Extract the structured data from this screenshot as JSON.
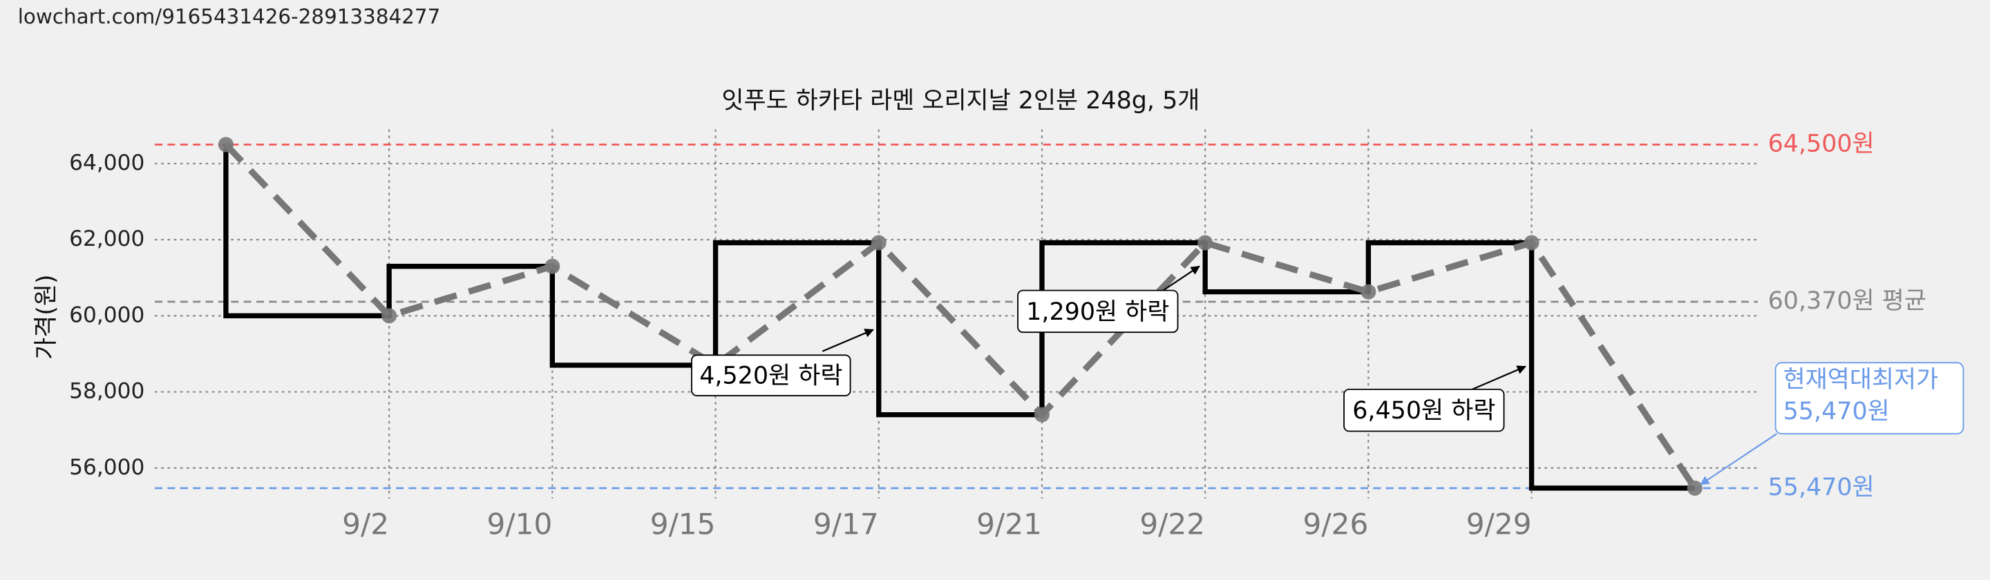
{
  "url": "lowchart.com/9165431426-28913384277",
  "chart_data": {
    "type": "line",
    "title": "잇푸도 하카타 라멘 오리지날 2인분 248g, 5개",
    "ylabel": "가격(원)",
    "categories": [
      null,
      "9/2",
      "9/10",
      "9/15",
      "9/17",
      "9/21",
      "9/22",
      "9/26",
      "9/29",
      null
    ],
    "values": [
      64500,
      60000,
      61300,
      58700,
      61920,
      57400,
      61920,
      60630,
      61920,
      55470
    ],
    "color": "#777777",
    "step": true,
    "step_color": "#000000",
    "ylim": [
      55200,
      64900
    ],
    "yticks": [
      {
        "value": 56000,
        "label": "56,000"
      },
      {
        "value": 58000,
        "label": "58,000"
      },
      {
        "value": 60000,
        "label": "60,000"
      },
      {
        "value": 62000,
        "label": "62,000"
      },
      {
        "value": 64000,
        "label": "64,000"
      }
    ],
    "grid": true,
    "reference_lines": [
      {
        "value": 64500,
        "label": "64,500원",
        "color": "#f05a5a"
      },
      {
        "value": 60370,
        "label": "60,370원 평균",
        "color": "#888888"
      },
      {
        "value": 55470,
        "label": "55,470원",
        "color": "#6a9ae8"
      }
    ],
    "annotations": [
      {
        "value": 4520,
        "label": "4,520원 하락"
      },
      {
        "value": 1290,
        "label": "1,290원 하락"
      },
      {
        "value": 6450,
        "label": "6,450원 하락"
      }
    ],
    "callout": {
      "title": "현재역대최저가",
      "value": 55470,
      "label": "55,470원"
    }
  }
}
